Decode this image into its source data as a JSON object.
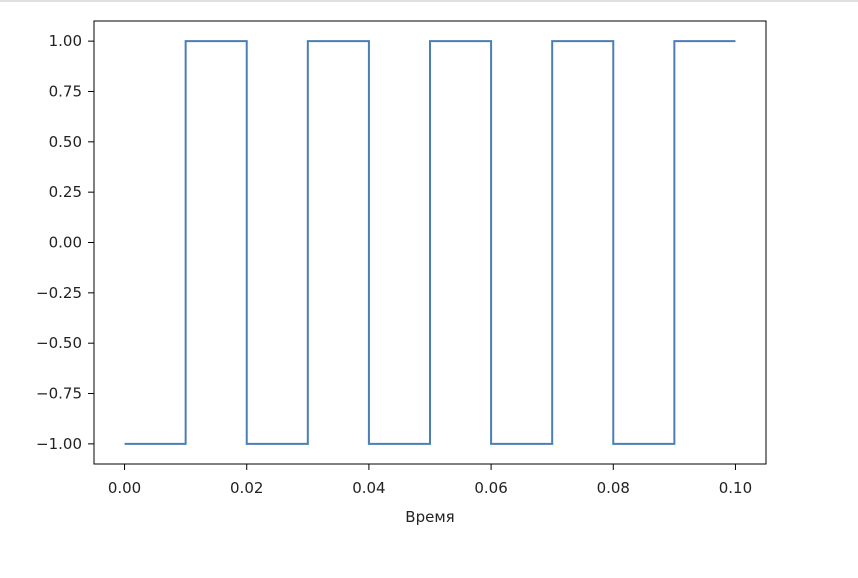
{
  "chart_data": {
    "type": "line",
    "xlabel": "Время",
    "ylabel": "",
    "title": "",
    "xlim": [
      -0.005,
      0.105
    ],
    "ylim": [
      -1.1,
      1.1
    ],
    "xticks": [
      0.0,
      0.02,
      0.04,
      0.06,
      0.08,
      0.1
    ],
    "xtick_labels": [
      "0.00",
      "0.02",
      "0.04",
      "0.06",
      "0.08",
      "0.10"
    ],
    "yticks": [
      1.0,
      0.75,
      0.5,
      0.25,
      0.0,
      -0.25,
      -0.5,
      -0.75,
      -1.0
    ],
    "ytick_labels": [
      "1.00",
      "0.75",
      "0.50",
      "0.25",
      "0.00",
      "−0.25",
      "−0.50",
      "−0.75",
      "−1.00"
    ],
    "grid": false,
    "color": "#4a7fb6",
    "series": [
      {
        "x": [
          0.0,
          0.01,
          0.01,
          0.02,
          0.02,
          0.03,
          0.03,
          0.04,
          0.04,
          0.05,
          0.05,
          0.06,
          0.06,
          0.07,
          0.07,
          0.08,
          0.08,
          0.09,
          0.09,
          0.1
        ],
        "y": [
          -1,
          -1,
          1,
          1,
          -1,
          -1,
          1,
          1,
          -1,
          -1,
          1,
          1,
          -1,
          -1,
          1,
          1,
          -1,
          -1,
          1,
          1
        ]
      }
    ]
  }
}
